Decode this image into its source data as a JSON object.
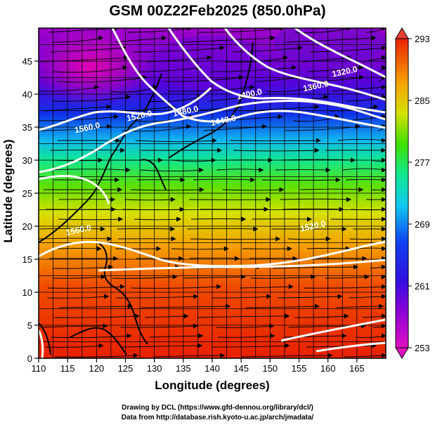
{
  "title": "GSM 00Z22Feb2025 (850.0hPa)",
  "axes": {
    "xlabel": "Longitude (degrees)",
    "ylabel": "Latitude  (degrees)",
    "xticks": [
      "110",
      "115",
      "120",
      "125",
      "130",
      "135",
      "140",
      "145",
      "150",
      "155",
      "160",
      "165"
    ],
    "yticks": [
      "0",
      "5",
      "10",
      "15",
      "20",
      "25",
      "30",
      "35",
      "40",
      "45"
    ],
    "xrange": [
      110,
      170
    ],
    "yrange": [
      0,
      50
    ]
  },
  "colorbar": {
    "ticks": [
      "253",
      "261",
      "269",
      "277",
      "285",
      "293"
    ],
    "range": [
      253,
      293
    ],
    "colors": [
      "#d000b8",
      "#5a00d8",
      "#1030e8",
      "#10b8f0",
      "#10e890",
      "#60e000",
      "#d8e000",
      "#f0a000",
      "#f05000",
      "#e82000"
    ]
  },
  "contour_labels": [
    {
      "text": "1560.0",
      "lon": 118.5,
      "lat": 34.5
    },
    {
      "text": "1520.0",
      "lon": 127.5,
      "lat": 36.3
    },
    {
      "text": "1480.0",
      "lon": 135.5,
      "lat": 37.0
    },
    {
      "text": "1440.0",
      "lon": 142.0,
      "lat": 35.6
    },
    {
      "text": "1400.0",
      "lon": 146.5,
      "lat": 39.6
    },
    {
      "text": "1360.0",
      "lon": 158.0,
      "lat": 40.8
    },
    {
      "text": "1320.0",
      "lon": 163.0,
      "lat": 43.0
    },
    {
      "text": "1520.0",
      "lon": 157.5,
      "lat": 19.6
    },
    {
      "text": "1560.0",
      "lon": 117.0,
      "lat": 19.0
    }
  ],
  "credits": {
    "line1": "Drawing by DCL (https://www.gfd-dennou.org/library/dcl/)",
    "line2": "Data from http://database.rish.kyoto-u.ac.jp/arch/jmadata/"
  }
}
